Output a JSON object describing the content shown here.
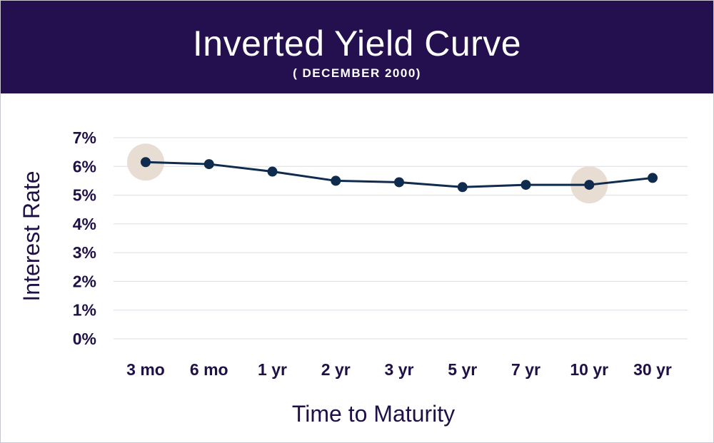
{
  "header": {
    "title": "Inverted Yield Curve",
    "subtitle": "( DECEMBER 2000)"
  },
  "colors": {
    "header_bg": "#24104f",
    "line": "#0f2b4e",
    "axis_text": "#1f1147",
    "highlight": "#e8ddd2",
    "grid": "#dcdce3"
  },
  "chart_data": {
    "type": "line",
    "title": "Inverted Yield Curve",
    "subtitle": "( DECEMBER 2000)",
    "xlabel": "Time to Maturity",
    "ylabel": "Interest Rate",
    "categories": [
      "3 mo",
      "6 mo",
      "1 yr",
      "2 yr",
      "3 yr",
      "5 yr",
      "7 yr",
      "10 yr",
      "30 yr"
    ],
    "values": [
      6.15,
      6.08,
      5.82,
      5.5,
      5.45,
      5.28,
      5.36,
      5.36,
      5.6
    ],
    "ylim": [
      0,
      7
    ],
    "yticks": [
      "0%",
      "1%",
      "2%",
      "3%",
      "4%",
      "5%",
      "6%",
      "7%"
    ],
    "highlighted_categories": [
      "3 mo",
      "10 yr"
    ],
    "grid": true
  }
}
